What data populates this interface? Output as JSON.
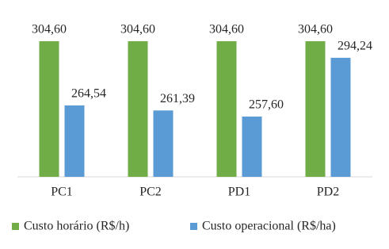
{
  "chart_data": {
    "type": "bar",
    "categories": [
      "PC1",
      "PC2",
      "PD1",
      "PD2"
    ],
    "series": [
      {
        "name": "Custo horário (R$/h)",
        "color": "#70ad47",
        "values": [
          304.6,
          304.6,
          304.6,
          304.6
        ],
        "value_labels": [
          "304,60",
          "304,60",
          "304,60",
          "304,60"
        ]
      },
      {
        "name": "Custo operacional (R$/ha)",
        "color": "#5b9bd5",
        "values": [
          264.54,
          261.39,
          257.6,
          294.24
        ],
        "value_labels": [
          "264,54",
          "261,39",
          "257,60",
          "294,24"
        ]
      }
    ],
    "ylim": [
      220,
      310
    ]
  }
}
